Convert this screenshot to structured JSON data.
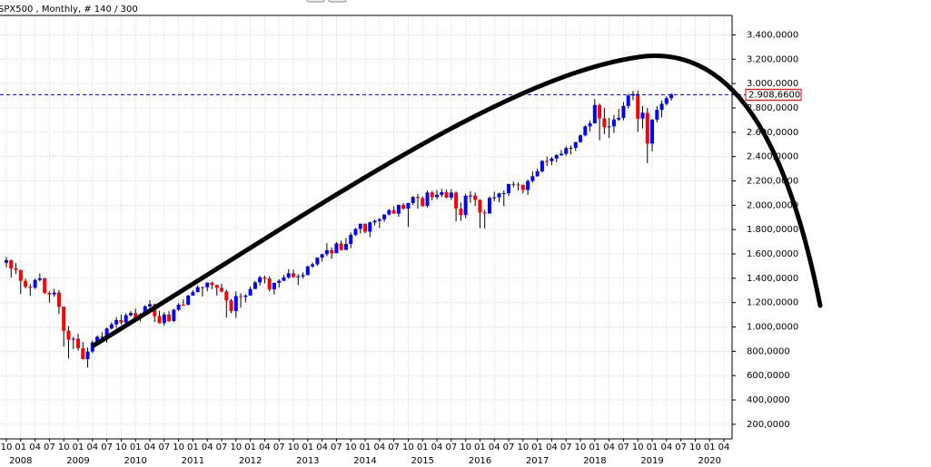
{
  "chart_data": {
    "type": "candlestick",
    "title": "SPX500 , Monthly, # 140 / 300",
    "x": [
      "2007-10",
      "2007-11",
      "2007-12",
      "2008-01",
      "2008-02",
      "2008-03",
      "2008-04",
      "2008-05",
      "2008-06",
      "2008-07",
      "2008-08",
      "2008-09",
      "2008-10",
      "2008-11",
      "2008-12",
      "2009-01",
      "2009-02",
      "2009-03",
      "2009-04",
      "2009-05",
      "2009-06",
      "2009-07",
      "2009-08",
      "2009-09",
      "2009-10",
      "2009-11",
      "2009-12",
      "2010-01",
      "2010-02",
      "2010-03",
      "2010-04",
      "2010-05",
      "2010-06",
      "2010-07",
      "2010-08",
      "2010-09",
      "2010-10",
      "2010-11",
      "2010-12",
      "2011-01",
      "2011-02",
      "2011-03",
      "2011-04",
      "2011-05",
      "2011-06",
      "2011-07",
      "2011-08",
      "2011-09",
      "2011-10",
      "2011-11",
      "2011-12",
      "2012-01",
      "2012-02",
      "2012-03",
      "2012-04",
      "2012-05",
      "2012-06",
      "2012-07",
      "2012-08",
      "2012-09",
      "2012-10",
      "2012-11",
      "2012-12",
      "2013-01",
      "2013-02",
      "2013-03",
      "2013-04",
      "2013-05",
      "2013-06",
      "2013-07",
      "2013-08",
      "2013-09",
      "2013-10",
      "2013-11",
      "2013-12",
      "2014-01",
      "2014-02",
      "2014-03",
      "2014-04",
      "2014-05",
      "2014-06",
      "2014-07",
      "2014-08",
      "2014-09",
      "2014-10",
      "2014-11",
      "2014-12",
      "2015-01",
      "2015-02",
      "2015-03",
      "2015-04",
      "2015-05",
      "2015-06",
      "2015-07",
      "2015-08",
      "2015-09",
      "2015-10",
      "2015-11",
      "2015-12",
      "2016-01",
      "2016-02",
      "2016-03",
      "2016-04",
      "2016-05",
      "2016-06",
      "2016-07",
      "2016-08",
      "2016-09",
      "2016-10",
      "2016-11",
      "2016-12",
      "2017-01",
      "2017-02",
      "2017-03",
      "2017-04",
      "2017-05",
      "2017-06",
      "2017-07",
      "2017-08",
      "2017-09",
      "2017-10",
      "2017-11",
      "2017-12",
      "2018-01",
      "2018-02",
      "2018-03",
      "2018-04",
      "2018-05",
      "2018-06",
      "2018-07",
      "2018-08",
      "2018-09",
      "2018-10",
      "2018-11",
      "2018-12",
      "2019-01",
      "2019-02",
      "2019-03",
      "2019-04",
      "2019-05"
    ],
    "open": [
      1527,
      1549,
      1481,
      1468,
      1378,
      1331,
      1323,
      1386,
      1400,
      1280,
      1267,
      1283,
      1166,
      969,
      896,
      903,
      826,
      735,
      798,
      873,
      919,
      919,
      987,
      1021,
      1057,
      1036,
      1096,
      1115,
      1074,
      1104,
      1169,
      1187,
      1089,
      1031,
      1102,
      1049,
      1141,
      1183,
      1181,
      1258,
      1286,
      1327,
      1326,
      1364,
      1345,
      1321,
      1292,
      1219,
      1131,
      1253,
      1247,
      1258,
      1312,
      1366,
      1408,
      1398,
      1310,
      1362,
      1379,
      1407,
      1441,
      1412,
      1416,
      1426,
      1498,
      1515,
      1569,
      1598,
      1631,
      1606,
      1686,
      1633,
      1682,
      1757,
      1806,
      1848,
      1783,
      1859,
      1872,
      1884,
      1924,
      1960,
      1931,
      2003,
      1972,
      2018,
      2068,
      2059,
      1995,
      2105,
      2068,
      2086,
      2107,
      2063,
      2104,
      1972,
      1920,
      2079,
      2080,
      2044,
      1940,
      1932,
      2060,
      2065,
      2097,
      2099,
      2174,
      2171,
      2168,
      2126,
      2199,
      2239,
      2279,
      2364,
      2363,
      2384,
      2412,
      2423,
      2470,
      2472,
      2519,
      2575,
      2648,
      2674,
      2824,
      2714,
      2641,
      2648,
      2705,
      2718,
      2816,
      2902,
      2914,
      2712,
      2760,
      2507,
      2704,
      2784,
      2834,
      2880
    ],
    "high": [
      1576,
      1553,
      1524,
      1472,
      1396,
      1352,
      1397,
      1440,
      1405,
      1293,
      1314,
      1304,
      1168,
      1007,
      919,
      943,
      876,
      832,
      888,
      930,
      957,
      997,
      1039,
      1081,
      1102,
      1113,
      1130,
      1150,
      1113,
      1180,
      1220,
      1192,
      1132,
      1121,
      1130,
      1149,
      1196,
      1227,
      1263,
      1302,
      1344,
      1333,
      1364,
      1371,
      1347,
      1356,
      1307,
      1230,
      1292,
      1277,
      1269,
      1333,
      1378,
      1420,
      1422,
      1416,
      1363,
      1392,
      1427,
      1475,
      1470,
      1434,
      1448,
      1504,
      1530,
      1570,
      1598,
      1688,
      1654,
      1698,
      1710,
      1730,
      1776,
      1813,
      1849,
      1850,
      1867,
      1884,
      1897,
      1924,
      1968,
      1991,
      2005,
      2019,
      2019,
      2075,
      2093,
      2072,
      2120,
      2118,
      2126,
      2135,
      2130,
      2133,
      2113,
      2021,
      2094,
      2116,
      2104,
      2048,
      1962,
      2073,
      2111,
      2103,
      2121,
      2178,
      2194,
      2187,
      2170,
      2214,
      2278,
      2301,
      2371,
      2401,
      2398,
      2419,
      2454,
      2484,
      2491,
      2520,
      2582,
      2657,
      2695,
      2873,
      2835,
      2801,
      2718,
      2742,
      2791,
      2848,
      2916,
      2940,
      2940,
      2815,
      2800,
      2708,
      2813,
      2860,
      2895,
      2920
    ],
    "low": [
      1490,
      1406,
      1435,
      1270,
      1317,
      1257,
      1312,
      1373,
      1272,
      1200,
      1248,
      1107,
      840,
      741,
      818,
      805,
      734,
      667,
      784,
      866,
      882,
      869,
      979,
      992,
      1020,
      1030,
      1086,
      1071,
      1045,
      1102,
      1157,
      1040,
      1029,
      1011,
      1040,
      1040,
      1131,
      1174,
      1180,
      1257,
      1283,
      1249,
      1294,
      1311,
      1258,
      1282,
      1077,
      1114,
      1075,
      1158,
      1202,
      1258,
      1312,
      1340,
      1358,
      1292,
      1267,
      1325,
      1379,
      1396,
      1403,
      1343,
      1398,
      1426,
      1485,
      1501,
      1537,
      1581,
      1560,
      1605,
      1627,
      1633,
      1647,
      1746,
      1768,
      1770,
      1737,
      1834,
      1814,
      1863,
      1916,
      1931,
      1905,
      1964,
      1821,
      2001,
      1972,
      1988,
      1981,
      2040,
      2048,
      2068,
      2057,
      2045,
      1867,
      1872,
      1893,
      2019,
      1993,
      1812,
      1810,
      1931,
      2034,
      2025,
      1992,
      2075,
      2147,
      2120,
      2098,
      2084,
      2187,
      2234,
      2267,
      2323,
      2329,
      2353,
      2405,
      2408,
      2417,
      2446,
      2515,
      2566,
      2605,
      2670,
      2533,
      2585,
      2553,
      2594,
      2691,
      2698,
      2796,
      2864,
      2603,
      2631,
      2346,
      2443,
      2681,
      2722,
      2820,
      2860
    ],
    "close": [
      1549,
      1481,
      1468,
      1378,
      1331,
      1323,
      1386,
      1400,
      1280,
      1267,
      1283,
      1166,
      969,
      896,
      903,
      826,
      735,
      798,
      873,
      919,
      919,
      987,
      1021,
      1057,
      1036,
      1096,
      1115,
      1074,
      1104,
      1169,
      1187,
      1089,
      1031,
      1102,
      1049,
      1141,
      1183,
      1181,
      1258,
      1286,
      1327,
      1326,
      1364,
      1345,
      1321,
      1292,
      1219,
      1131,
      1253,
      1247,
      1258,
      1312,
      1366,
      1408,
      1398,
      1310,
      1362,
      1379,
      1407,
      1441,
      1412,
      1416,
      1426,
      1498,
      1515,
      1569,
      1598,
      1631,
      1606,
      1686,
      1633,
      1682,
      1757,
      1806,
      1848,
      1783,
      1859,
      1872,
      1884,
      1924,
      1960,
      1931,
      2003,
      1972,
      2018,
      2068,
      2059,
      1995,
      2105,
      2068,
      2086,
      2107,
      2063,
      2104,
      1972,
      1920,
      2079,
      2080,
      2044,
      1940,
      1932,
      2060,
      2065,
      2097,
      2099,
      2174,
      2171,
      2168,
      2126,
      2199,
      2239,
      2279,
      2364,
      2363,
      2384,
      2412,
      2423,
      2470,
      2472,
      2519,
      2575,
      2648,
      2674,
      2824,
      2714,
      2641,
      2648,
      2705,
      2718,
      2816,
      2902,
      2914,
      2712,
      2760,
      2507,
      2704,
      2784,
      2834,
      2880,
      2908.66
    ],
    "up_color": "#0000ff",
    "down_color": "#ff0000",
    "last_price": {
      "value": 2908.66,
      "label": "2.908,6600"
    },
    "ylim": [
      80,
      3560
    ],
    "yticks": [
      {
        "value": 200,
        "label": "200,0000"
      },
      {
        "value": 400,
        "label": "400,0000"
      },
      {
        "value": 600,
        "label": "600,0000"
      },
      {
        "value": 800,
        "label": "800,0000"
      },
      {
        "value": 1000,
        "label": "1.000,0000"
      },
      {
        "value": 1200,
        "label": "1.200,0000"
      },
      {
        "value": 1400,
        "label": "1.400,0000"
      },
      {
        "value": 1600,
        "label": "1.600,0000"
      },
      {
        "value": 1800,
        "label": "1.800,0000"
      },
      {
        "value": 2000,
        "label": "2.000,0000"
      },
      {
        "value": 2200,
        "label": "2.200,0000"
      },
      {
        "value": 2400,
        "label": "2.400,0000"
      },
      {
        "value": 2600,
        "label": "2.600,0000"
      },
      {
        "value": 2800,
        "label": "2.800,0000"
      },
      {
        "value": 3000,
        "label": "3.000,0000"
      },
      {
        "value": 3200,
        "label": "3.200,0000"
      },
      {
        "value": 3400,
        "label": "3.400,0000"
      }
    ],
    "xticks": [
      {
        "value": "2007-10",
        "label": "10"
      },
      {
        "value": "2008-01",
        "label": "01"
      },
      {
        "value": "2008-04",
        "label": "04"
      },
      {
        "value": "2008-07",
        "label": "07"
      },
      {
        "value": "2008-10",
        "label": "10"
      },
      {
        "value": "2009-01",
        "label": "01"
      },
      {
        "value": "2009-04",
        "label": "04"
      },
      {
        "value": "2009-07",
        "label": "07"
      },
      {
        "value": "2009-10",
        "label": "10"
      },
      {
        "value": "2010-01",
        "label": "01"
      },
      {
        "value": "2010-04",
        "label": "04"
      },
      {
        "value": "2010-07",
        "label": "07"
      },
      {
        "value": "2010-10",
        "label": "10"
      },
      {
        "value": "2011-01",
        "label": "01"
      },
      {
        "value": "2011-04",
        "label": "04"
      },
      {
        "value": "2011-07",
        "label": "07"
      },
      {
        "value": "2011-10",
        "label": "10"
      },
      {
        "value": "2012-01",
        "label": "01"
      },
      {
        "value": "2012-04",
        "label": "04"
      },
      {
        "value": "2012-07",
        "label": "07"
      },
      {
        "value": "2012-10",
        "label": "10"
      },
      {
        "value": "2013-01",
        "label": "01"
      },
      {
        "value": "2013-04",
        "label": "04"
      },
      {
        "value": "2013-07",
        "label": "07"
      },
      {
        "value": "2013-10",
        "label": "10"
      },
      {
        "value": "2014-01",
        "label": "01"
      },
      {
        "value": "2014-04",
        "label": "04"
      },
      {
        "value": "2014-07",
        "label": "07"
      },
      {
        "value": "2014-10",
        "label": "10"
      },
      {
        "value": "2015-01",
        "label": "01"
      },
      {
        "value": "2015-04",
        "label": "04"
      },
      {
        "value": "2015-07",
        "label": "07"
      },
      {
        "value": "2015-10",
        "label": "10"
      },
      {
        "value": "2016-01",
        "label": "01"
      },
      {
        "value": "2016-04",
        "label": "04"
      },
      {
        "value": "2016-07",
        "label": "07"
      },
      {
        "value": "2016-10",
        "label": "10"
      },
      {
        "value": "2017-01",
        "label": "01"
      },
      {
        "value": "2017-04",
        "label": "04"
      },
      {
        "value": "2017-07",
        "label": "07"
      },
      {
        "value": "2017-10",
        "label": "10"
      },
      {
        "value": "2018-01",
        "label": "01"
      },
      {
        "value": "2018-04",
        "label": "04"
      },
      {
        "value": "2018-07",
        "label": "07"
      },
      {
        "value": "2018-10",
        "label": "10"
      },
      {
        "value": "2019-01",
        "label": "01"
      },
      {
        "value": "2019-04",
        "label": "04"
      },
      {
        "value": "2019-07",
        "label": "07"
      },
      {
        "value": "2019-10",
        "label": "10"
      },
      {
        "value": "2020-01",
        "label": "01"
      },
      {
        "value": "2020-04",
        "label": "04"
      }
    ],
    "x_year_labels": [
      2008,
      2009,
      2010,
      2011,
      2012,
      2013,
      2014,
      2015,
      2016,
      2017,
      2018,
      2019,
      2020
    ],
    "grid": true
  }
}
